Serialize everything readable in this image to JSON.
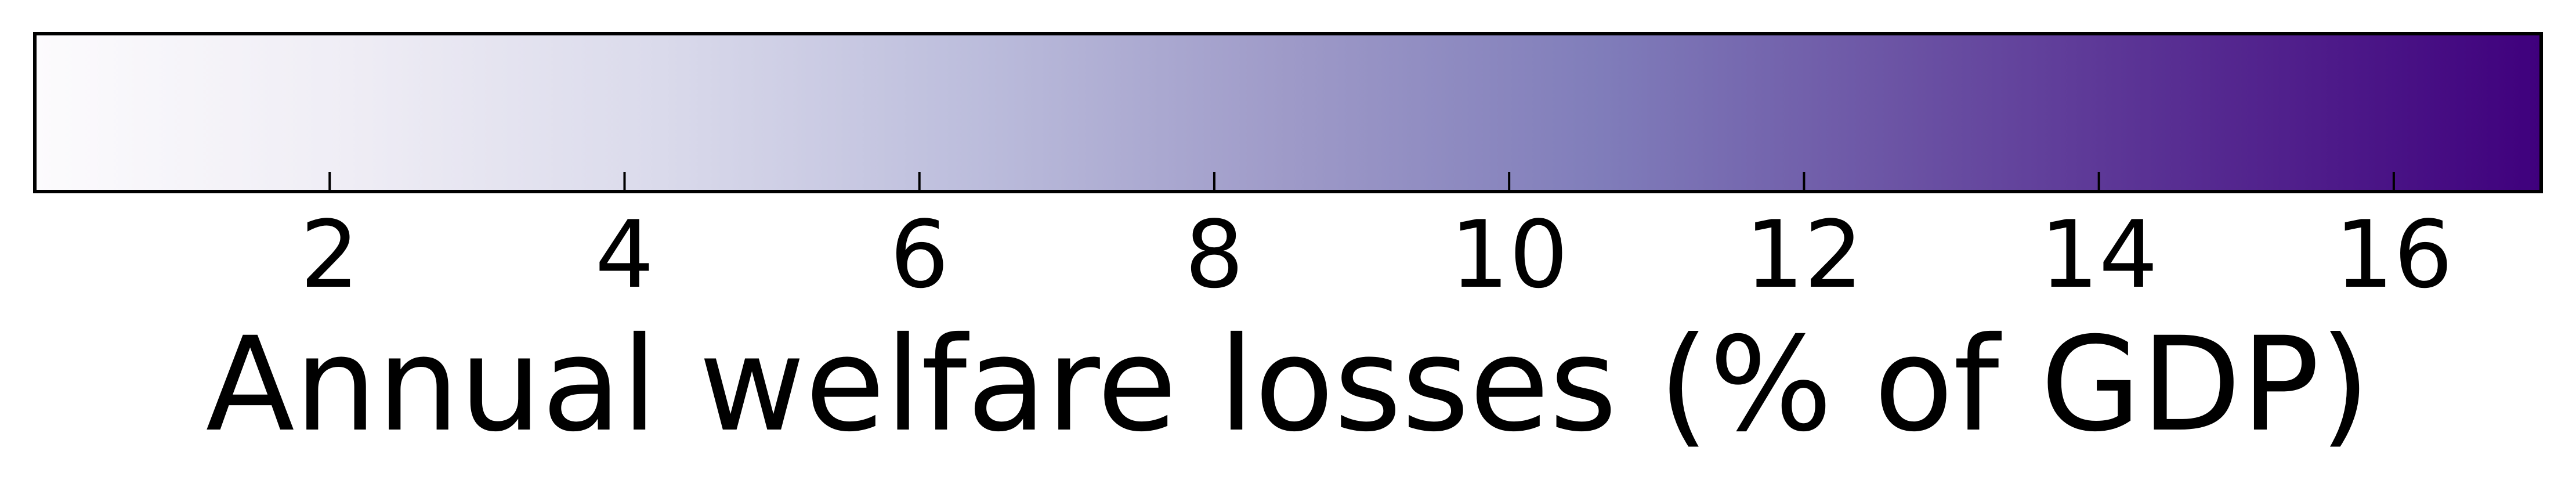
{
  "chart_data": {
    "type": "colorbar",
    "orientation": "horizontal",
    "colormap": "Purples",
    "xlabel": "Annual welfare losses (% of GDP)",
    "xlim": [
      0,
      17
    ],
    "ticks": [
      2,
      4,
      6,
      8,
      10,
      12,
      14,
      16
    ],
    "tick_labels": [
      "2",
      "4",
      "6",
      "8",
      "10",
      "12",
      "14",
      "16"
    ],
    "color_stops": [
      {
        "value": 0.0,
        "color": "#fcfbfd"
      },
      {
        "value": 0.125,
        "color": "#efedf5"
      },
      {
        "value": 0.25,
        "color": "#dadaeb"
      },
      {
        "value": 0.375,
        "color": "#bcbddc"
      },
      {
        "value": 0.5,
        "color": "#9e9ac8"
      },
      {
        "value": 0.625,
        "color": "#807dba"
      },
      {
        "value": 0.75,
        "color": "#6a51a3"
      },
      {
        "value": 0.875,
        "color": "#54278f"
      },
      {
        "value": 1.0,
        "color": "#3f007d"
      }
    ]
  }
}
